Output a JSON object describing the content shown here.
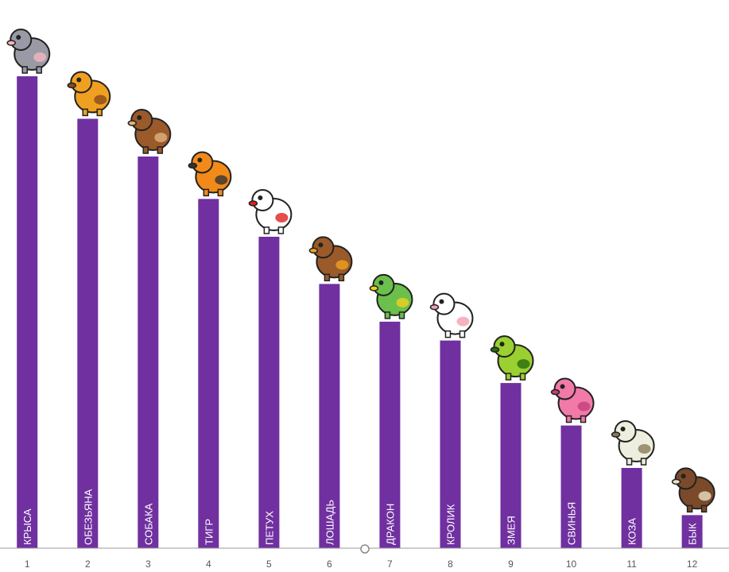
{
  "chart_data": {
    "type": "bar",
    "title": "",
    "xlabel": "",
    "ylabel": "",
    "categories": [
      "1",
      "2",
      "3",
      "4",
      "5",
      "6",
      "7",
      "8",
      "9",
      "10",
      "11",
      "12"
    ],
    "series": [
      {
        "labels": [
          "КРЫСА",
          "ОБЕЗЬЯНА",
          "СОБАКА",
          "ТИГР",
          "ПЕТУХ",
          "ЛОШАДЬ",
          "ДРАКОН",
          "КРОЛИК",
          "ЗМЕЯ",
          "СВИНЬЯ",
          "КОЗА",
          "БЫК"
        ],
        "values": [
          100,
          91,
          83,
          74,
          66,
          56,
          48,
          44,
          35,
          26,
          17,
          7
        ],
        "color": "#7030a0"
      }
    ],
    "ylim": [
      0,
      100
    ],
    "grid": false,
    "legend": "none",
    "icons": [
      "rat-icon",
      "monkey-icon",
      "dog-icon",
      "tiger-icon",
      "rooster-icon",
      "horse-icon",
      "dragon-icon",
      "rabbit-icon",
      "snake-icon",
      "pig-icon",
      "goat-icon",
      "ox-icon"
    ]
  }
}
